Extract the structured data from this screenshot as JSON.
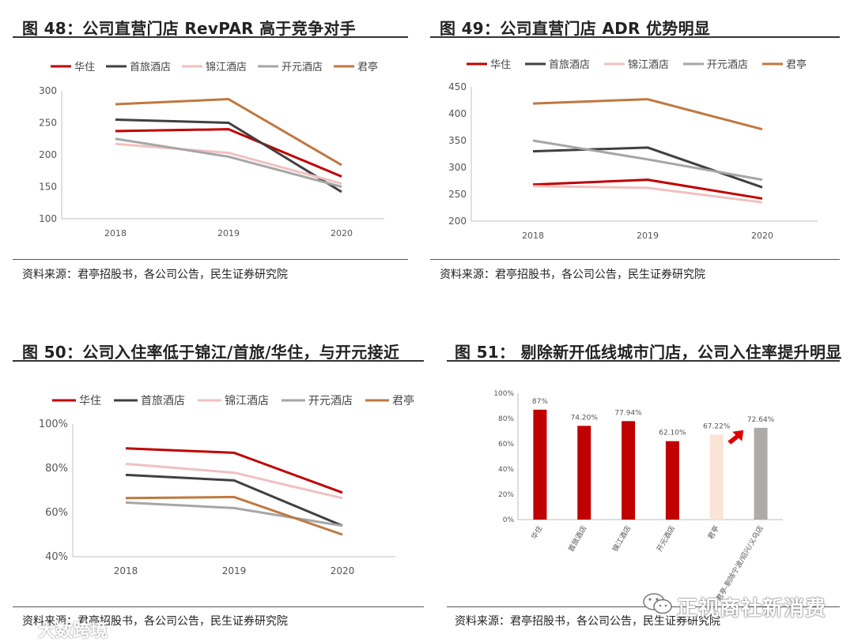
{
  "watermarks": {
    "left": "大数跨境",
    "right": "正视商社新消费"
  },
  "legend_colors": {
    "华住": "#c00000",
    "首旅酒店": "#404040",
    "锦江酒店": "#f0c0c0",
    "开元酒店": "#a6a6a6",
    "君亭": "#c07840"
  },
  "panels": [
    {
      "title": "图 48：公司直营门店 RevPAR 高于竞争对手",
      "source": "资料来源：君亭招股书，各公司公告，民生证券研究院"
    },
    {
      "title": "图 49：公司直营门店 ADR 优势明显",
      "source": "资料来源：君亭招股书，各公司公告，民生证券研究院"
    },
    {
      "title": "图 50：公司入住率低于锦江/首旅/华住，与开元接近",
      "source": "资料来源：君亭招股书，各公司公告，民生证券研究院"
    },
    {
      "title": "图 51：  剔除新开低线城市门店，公司入住率提升明显",
      "source": "资料来源：君亭招股书，各公司公告，民生证券研究院"
    }
  ],
  "chart_data": [
    {
      "type": "line",
      "title": "图 48：公司直营门店 RevPAR 高于竞争对手",
      "x": [
        "2018",
        "2019",
        "2020"
      ],
      "ylim": [
        100,
        300
      ],
      "yticks": [
        "100",
        "150",
        "200",
        "250",
        "300"
      ],
      "series": [
        {
          "name": "华住",
          "values": [
            237,
            240,
            166
          ]
        },
        {
          "name": "首旅酒店",
          "values": [
            255,
            250,
            142
          ]
        },
        {
          "name": "锦江酒店",
          "values": [
            217,
            203,
            155
          ]
        },
        {
          "name": "开元酒店",
          "values": [
            225,
            197,
            150
          ]
        },
        {
          "name": "君亭",
          "values": [
            279,
            287,
            184
          ]
        }
      ]
    },
    {
      "type": "line",
      "title": "图 49：公司直营门店 ADR 优势明显",
      "x": [
        "2018",
        "2019",
        "2020"
      ],
      "ylim": [
        200,
        450
      ],
      "yticks": [
        "200",
        "250",
        "300",
        "350",
        "400",
        "450"
      ],
      "series": [
        {
          "name": "华住",
          "values": [
            268,
            277,
            242
          ]
        },
        {
          "name": "首旅酒店",
          "values": [
            330,
            337,
            263
          ]
        },
        {
          "name": "锦江酒店",
          "values": [
            265,
            262,
            235
          ]
        },
        {
          "name": "开元酒店",
          "values": [
            350,
            315,
            277
          ]
        },
        {
          "name": "君亭",
          "values": [
            419,
            427,
            371
          ]
        }
      ]
    },
    {
      "type": "line",
      "title": "图 50：公司入住率低于锦江/首旅/华住，与开元接近",
      "x": [
        "2018",
        "2019",
        "2020"
      ],
      "ylim": [
        40,
        100
      ],
      "yticks": [
        "40%",
        "60%",
        "80%",
        "100%"
      ],
      "series": [
        {
          "name": "华住",
          "values": [
            89,
            87,
            69
          ]
        },
        {
          "name": "首旅酒店",
          "values": [
            77,
            74.5,
            54
          ]
        },
        {
          "name": "锦江酒店",
          "values": [
            82,
            78,
            66.5
          ]
        },
        {
          "name": "开元酒店",
          "values": [
            64.5,
            62,
            54
          ]
        },
        {
          "name": "君亭",
          "values": [
            66.5,
            67,
            50
          ]
        }
      ]
    },
    {
      "type": "bar",
      "title": "图 51：  剔除新开低线城市门店，公司入住率提升明显",
      "categories": [
        "华住",
        "首旅酒店",
        "锦江酒店",
        "开元酒店",
        "君亭",
        "君亭-剔除宁波/绍兴/义乌店"
      ],
      "values": [
        87,
        74.2,
        77.94,
        62.1,
        67.22,
        72.64
      ],
      "data_labels": [
        "87%",
        "74.20%",
        "77.94%",
        "62.10%",
        "67.22%",
        "72.64%"
      ],
      "colors": [
        "#c00000",
        "#c00000",
        "#c00000",
        "#c00000",
        "#fbe3d6",
        "#aeaaaa"
      ],
      "ylim": [
        0,
        100
      ],
      "yticks": [
        "0%",
        "20%",
        "40%",
        "60%",
        "80%",
        "100%"
      ]
    }
  ]
}
